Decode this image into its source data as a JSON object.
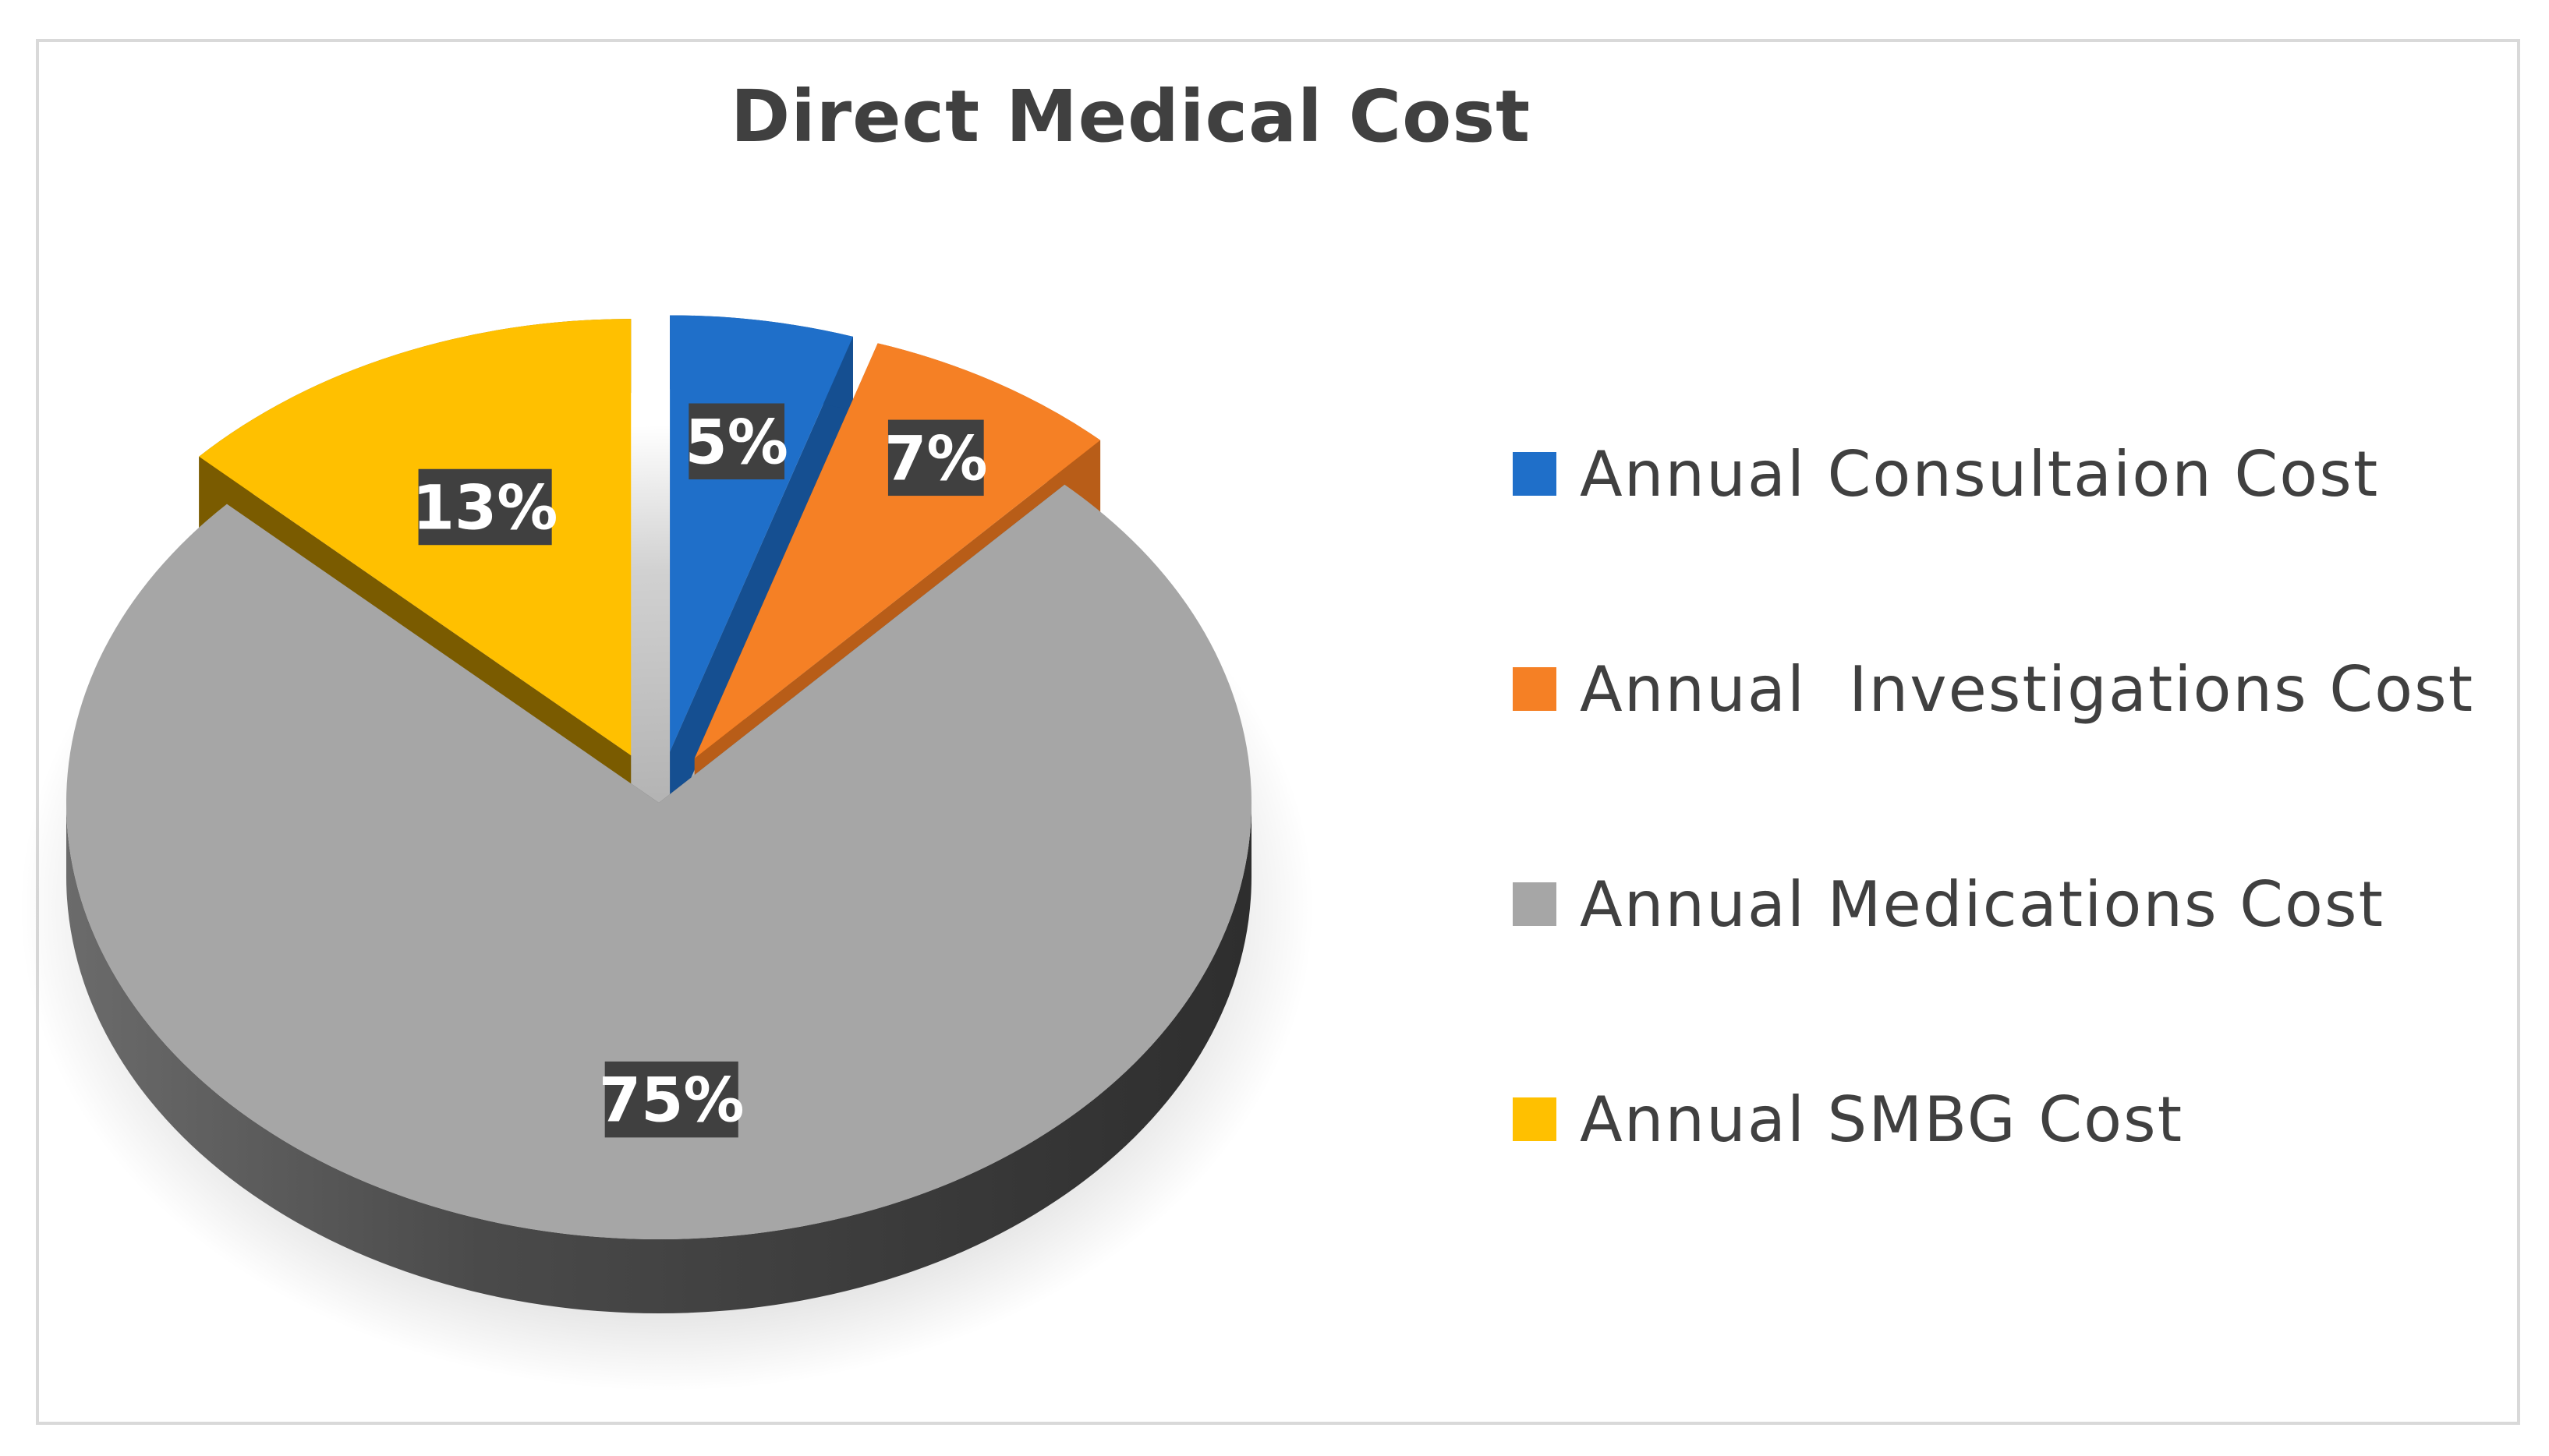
{
  "chart_data": {
    "type": "pie",
    "style": "3d-exploded",
    "title": "Direct Medical Cost",
    "categories": [
      "Annual Consultaion Cost",
      "Annual  Investigations Cost",
      "Annual Medications Cost",
      "Annual SMBG Cost"
    ],
    "values": [
      5,
      7,
      75,
      13
    ],
    "data_labels": [
      "5%",
      "7%",
      "75%",
      "13%"
    ],
    "colors": [
      "#1f6fc9",
      "#f58025",
      "#a6a6a6",
      "#ffc000"
    ],
    "side_colors": [
      "#154f91",
      "#b85d18",
      "#474747",
      "#7a5b00"
    ],
    "legend_position": "right"
  }
}
